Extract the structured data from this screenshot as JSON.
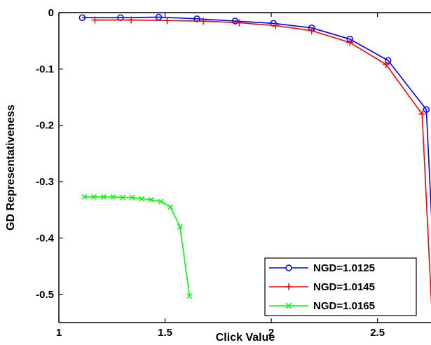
{
  "chart_data": {
    "type": "line",
    "title": "",
    "xlabel": "Click Value",
    "ylabel": "GD Representativeness",
    "xlim": [
      1,
      2.75
    ],
    "ylim": [
      -0.55,
      0
    ],
    "x_ticks": [
      1,
      1.5,
      2,
      2.5
    ],
    "x_tick_labels": [
      "1",
      "1.5",
      "2",
      "2.5"
    ],
    "y_ticks": [
      0,
      -0.1,
      -0.2,
      -0.3,
      -0.4,
      -0.5
    ],
    "y_tick_labels": [
      "0",
      "-0.1",
      "-0.2",
      "-0.3",
      "-0.4",
      "-0.5"
    ],
    "grid": false,
    "legend_position": "bottom-right",
    "series": [
      {
        "name": "NGD=1.0125",
        "color": "#0000ff",
        "marker": "circle",
        "x": [
          1.11,
          1.29,
          1.47,
          1.65,
          1.83,
          2.01,
          2.19,
          2.37,
          2.55,
          2.73,
          2.78
        ],
        "y": [
          -0.009,
          -0.009,
          -0.008,
          -0.011,
          -0.015,
          -0.019,
          -0.027,
          -0.047,
          -0.085,
          -0.172,
          -0.56
        ]
      },
      {
        "name": "NGD=1.0145",
        "color": "#ff0000",
        "marker": "plus",
        "x": [
          1.17,
          1.34,
          1.51,
          1.68,
          1.85,
          2.02,
          2.19,
          2.37,
          2.54,
          2.71,
          2.76
        ],
        "y": [
          -0.013,
          -0.013,
          -0.014,
          -0.015,
          -0.018,
          -0.023,
          -0.032,
          -0.053,
          -0.092,
          -0.18,
          -0.56
        ]
      },
      {
        "name": "NGD=1.0165",
        "color": "#00ff00",
        "marker": "x",
        "x": [
          1.12,
          1.165,
          1.21,
          1.255,
          1.3,
          1.345,
          1.39,
          1.435,
          1.48,
          1.525,
          1.57,
          1.615
        ],
        "y": [
          -0.327,
          -0.327,
          -0.327,
          -0.327,
          -0.328,
          -0.328,
          -0.33,
          -0.332,
          -0.335,
          -0.345,
          -0.38,
          -0.503
        ]
      }
    ]
  }
}
